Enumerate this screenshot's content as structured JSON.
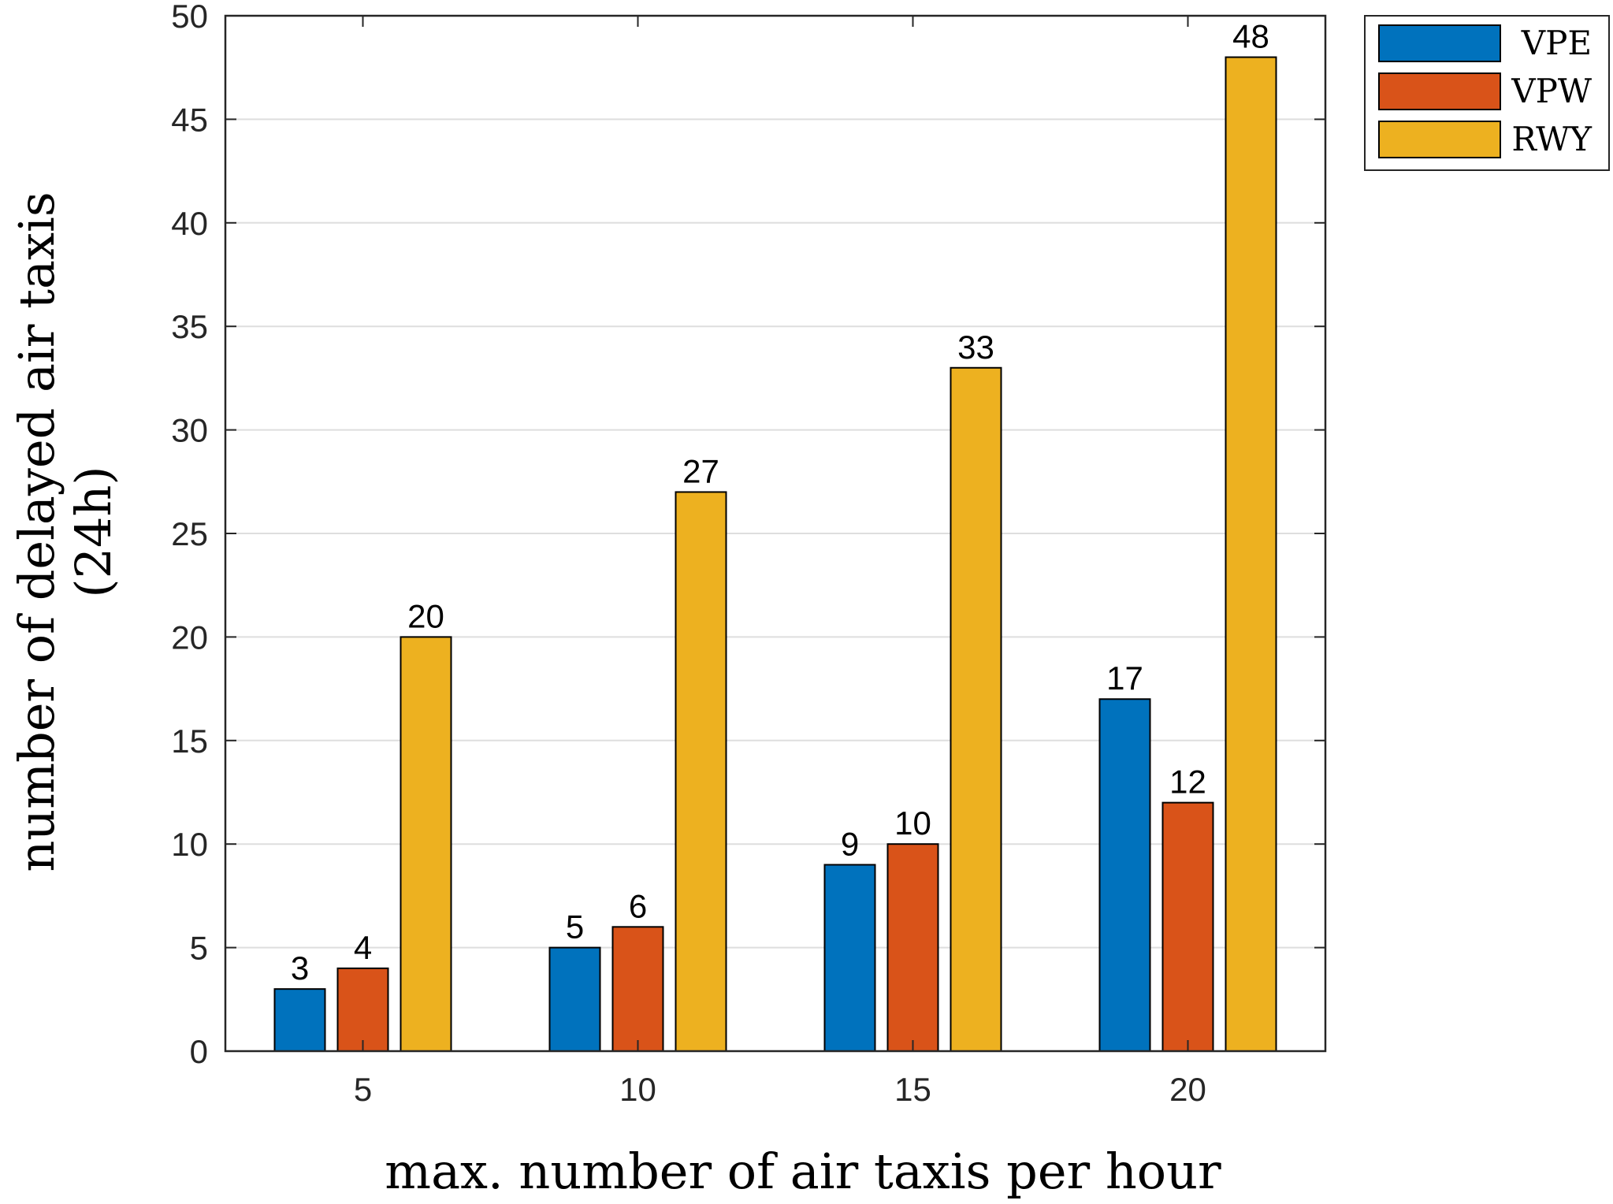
{
  "chart_data": {
    "type": "bar",
    "categories": [
      "5",
      "10",
      "15",
      "20"
    ],
    "series": [
      {
        "name": "VPE",
        "color": "#0072BD",
        "values": [
          3,
          5,
          9,
          17
        ]
      },
      {
        "name": "VPW",
        "color": "#D95319",
        "values": [
          4,
          6,
          10,
          12
        ]
      },
      {
        "name": "RWY",
        "color": "#EDB120",
        "values": [
          20,
          27,
          33,
          48
        ]
      }
    ],
    "ylim": [
      0,
      50
    ],
    "yticks": [
      0,
      5,
      10,
      15,
      20,
      25,
      30,
      35,
      40,
      45,
      50
    ],
    "xlabel": "max. number of air taxis per hour",
    "ylabel_line1": "number of delayed air taxis",
    "ylabel_line2": "(24h)",
    "grid": "y",
    "legend_position": "outside top-right"
  }
}
